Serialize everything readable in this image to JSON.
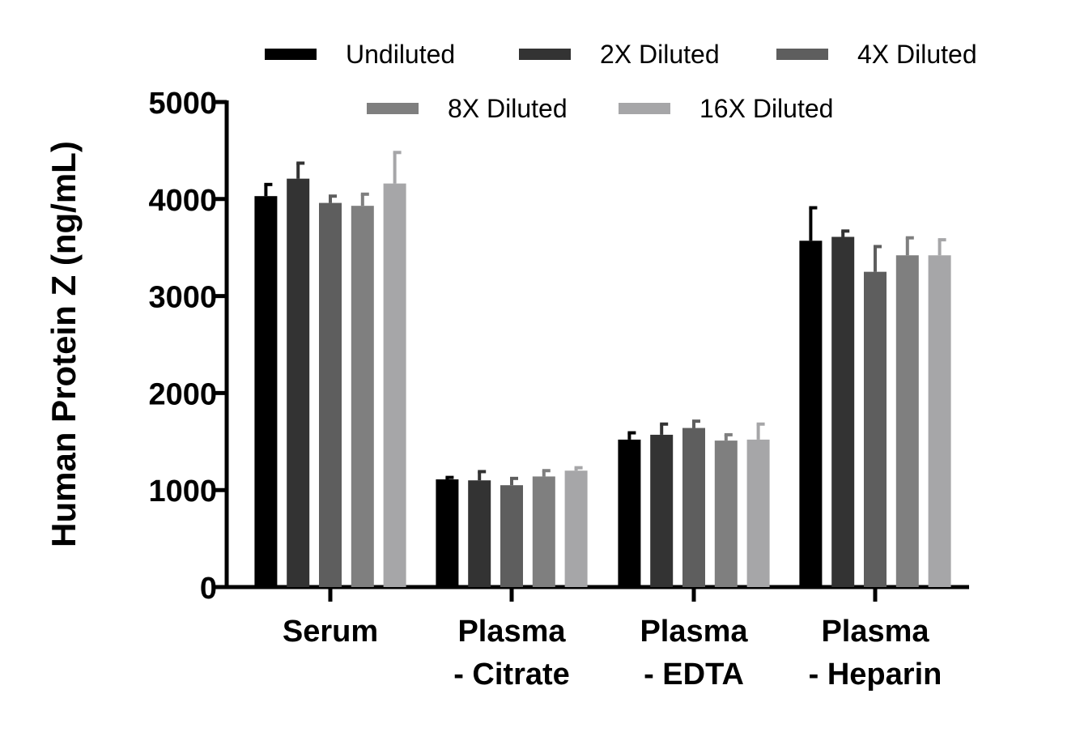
{
  "chart_data": {
    "type": "bar",
    "ylabel": "Human Protein Z (ng/mL)",
    "xlabel": "",
    "ylim": [
      0,
      5000
    ],
    "yticks": [
      0,
      1000,
      2000,
      3000,
      4000,
      5000
    ],
    "ytick_labels": [
      "0",
      "1000",
      "2000",
      "3000",
      "4000",
      "5000"
    ],
    "grid": false,
    "legend_position": "top",
    "categories": [
      [
        "Serum"
      ],
      [
        "Plasma",
        "- Citrate"
      ],
      [
        "Plasma",
        "- EDTA"
      ],
      [
        "Plasma",
        "- Heparin"
      ]
    ],
    "series": [
      {
        "name": "Undiluted",
        "color": "#000000",
        "values": [
          4030,
          1110,
          1520,
          3570
        ],
        "errors": [
          120,
          20,
          70,
          340
        ]
      },
      {
        "name": "2X Diluted",
        "color": "#333333",
        "values": [
          4210,
          1100,
          1570,
          3610
        ],
        "errors": [
          160,
          90,
          110,
          60
        ]
      },
      {
        "name": "4X Diluted",
        "color": "#5e5e5e",
        "values": [
          3960,
          1050,
          1640,
          3250
        ],
        "errors": [
          70,
          70,
          70,
          260
        ]
      },
      {
        "name": "8X Diluted",
        "color": "#7f7f7f",
        "values": [
          3930,
          1140,
          1510,
          3420
        ],
        "errors": [
          120,
          60,
          60,
          180
        ]
      },
      {
        "name": "16X Diluted",
        "color": "#a6a6a8",
        "values": [
          4160,
          1200,
          1520,
          3420
        ],
        "errors": [
          320,
          30,
          160,
          160
        ]
      }
    ]
  }
}
